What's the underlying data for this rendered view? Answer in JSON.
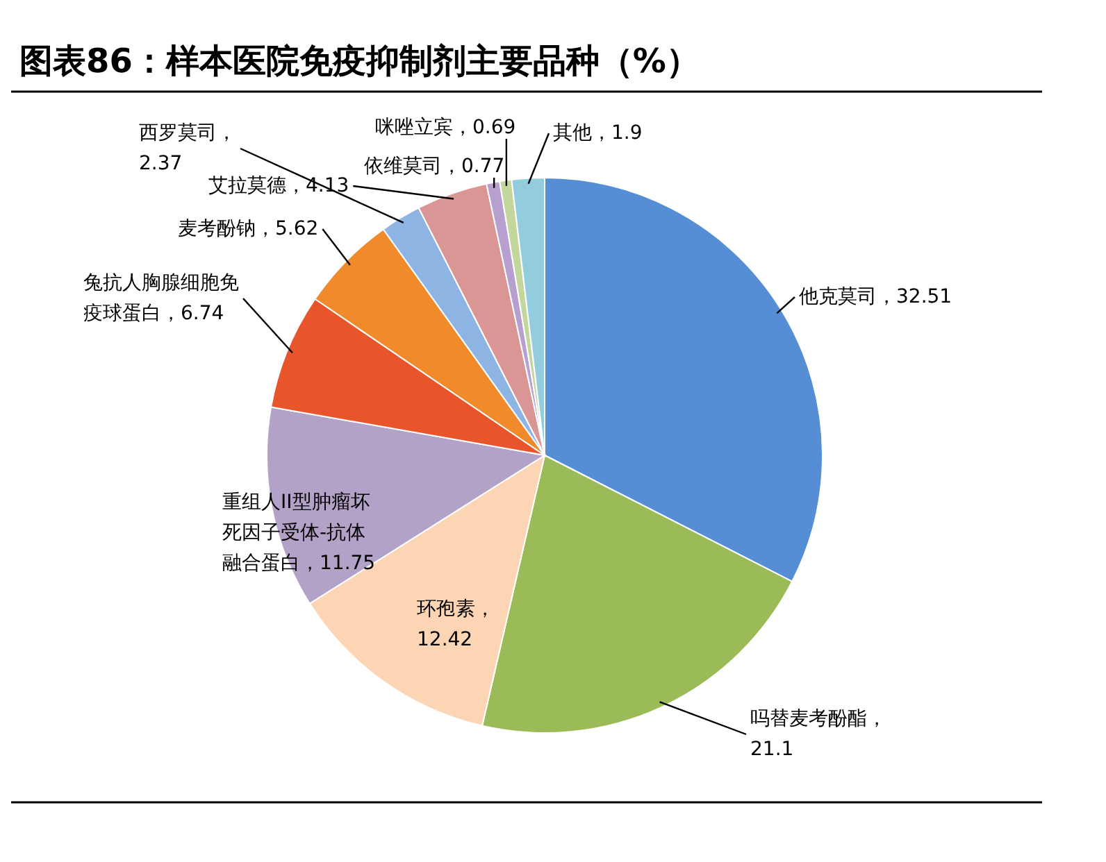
{
  "chart_data": {
    "type": "pie",
    "title": "图表86：样本医院免疫抑制剂主要品种（%）",
    "categories": [
      "他克莫司",
      "吗替麦考酚酯",
      "环孢素",
      "重组人II型肿瘤坏死因子受体-抗体融合蛋白",
      "兔抗人胸腺细胞免疫球蛋白",
      "麦考酚钠",
      "西罗莫司",
      "艾拉莫德",
      "依维莫司",
      "咪唑立宾",
      "其他"
    ],
    "values": [
      32.51,
      21.1,
      12.42,
      11.75,
      6.74,
      5.62,
      2.37,
      4.13,
      0.77,
      0.69,
      1.9
    ],
    "colors": [
      "#558ed5",
      "#9bbb59",
      "#fcd5b5",
      "#b3a2c7",
      "#e8552a",
      "#f08a2a",
      "#8eb4e3",
      "#d99694",
      "#b7a0d0",
      "#c3d69b",
      "#93cddd"
    ],
    "value_labels": [
      "，32.51",
      "，21.1",
      "，12.42",
      "，11.75",
      "，6.74",
      "，5.62",
      "，2.37",
      "，4.13",
      "，0.77",
      "，0.69",
      "，1.9"
    ],
    "legend": false
  }
}
